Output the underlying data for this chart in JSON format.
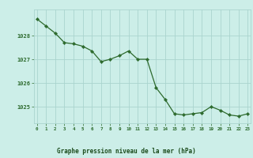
{
  "x": [
    0,
    1,
    2,
    3,
    4,
    5,
    6,
    7,
    8,
    9,
    10,
    11,
    12,
    13,
    14,
    15,
    16,
    17,
    18,
    19,
    20,
    21,
    22,
    23
  ],
  "y": [
    1028.7,
    1028.4,
    1028.1,
    1027.7,
    1027.65,
    1027.55,
    1027.35,
    1026.9,
    1027.0,
    1027.15,
    1027.35,
    1027.0,
    1027.0,
    1025.8,
    1025.3,
    1024.7,
    1024.65,
    1024.7,
    1024.75,
    1025.0,
    1024.85,
    1024.65,
    1024.6,
    1024.7
  ],
  "line_color": "#2d6a2d",
  "marker_color": "#2d6a2d",
  "background_color": "#cceee8",
  "grid_color": "#aad4ce",
  "axis_label_color": "#1a4a1a",
  "tick_label_color": "#2d6a2d",
  "xlabel": "Graphe pression niveau de la mer (hPa)",
  "ylim": [
    1024.3,
    1029.1
  ],
  "yticks": [
    1025,
    1026,
    1027,
    1028
  ],
  "xticks": [
    0,
    1,
    2,
    3,
    4,
    5,
    6,
    7,
    8,
    9,
    10,
    11,
    12,
    13,
    14,
    15,
    16,
    17,
    18,
    19,
    20,
    21,
    22,
    23
  ]
}
